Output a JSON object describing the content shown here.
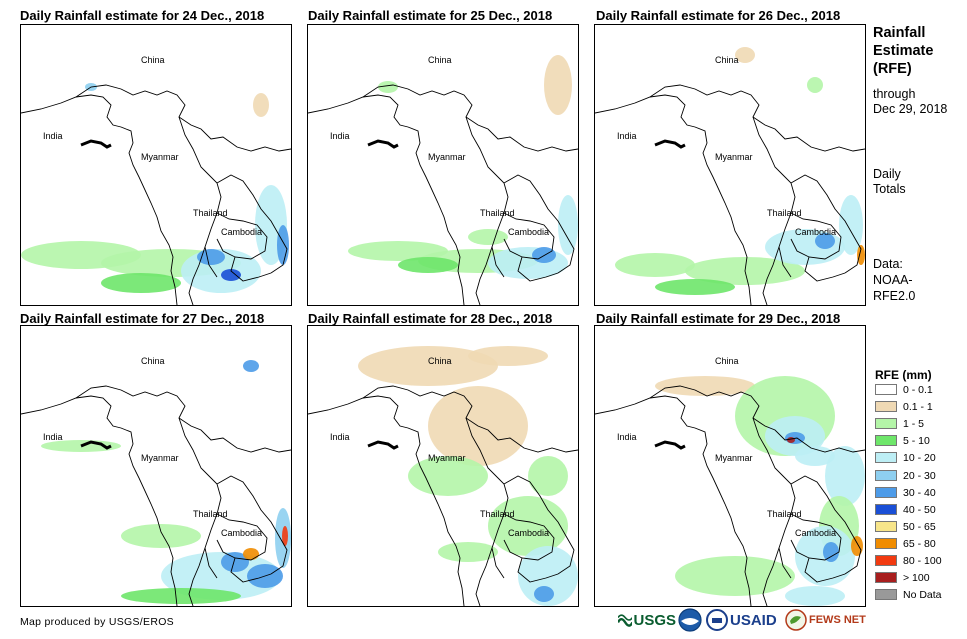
{
  "panels": [
    {
      "title": "Daily Rainfall estimate for 24 Dec., 2018"
    },
    {
      "title": "Daily Rainfall estimate for 25 Dec., 2018"
    },
    {
      "title": "Daily Rainfall estimate for 26 Dec., 2018"
    },
    {
      "title": "Daily Rainfall estimate for 27 Dec., 2018"
    },
    {
      "title": "Daily Rainfall estimate for 28 Dec., 2018"
    },
    {
      "title": "Daily Rainfall estimate for 29 Dec., 2018"
    }
  ],
  "places": {
    "china": "China",
    "india": "India",
    "myanmar": "Myanmar",
    "thailand": "Thailand",
    "cambodia": "Cambodia"
  },
  "side": {
    "title1": "Rainfall",
    "title2": "Estimate",
    "title3": "(RFE)",
    "through": "through",
    "date": "Dec 29, 2018",
    "daily": "Daily",
    "totals": "Totals",
    "data_label": "Data:",
    "source1": "NOAA-",
    "source2": "RFE2.0"
  },
  "legend": {
    "title": "RFE (mm)",
    "items": [
      {
        "label": "0 - 0.1",
        "color": "#ffffff"
      },
      {
        "label": "0.1 - 1",
        "color": "#efd9b4"
      },
      {
        "label": "1 - 5",
        "color": "#b4f5a8"
      },
      {
        "label": "5 - 10",
        "color": "#6ee66a"
      },
      {
        "label": "10 - 20",
        "color": "#bdeef5"
      },
      {
        "label": "20 - 30",
        "color": "#8ecff0"
      },
      {
        "label": "30 - 40",
        "color": "#4d9be8"
      },
      {
        "label": "40 - 50",
        "color": "#1a4fd6"
      },
      {
        "label": "50 - 65",
        "color": "#f7e58a"
      },
      {
        "label": "65 - 80",
        "color": "#f08c00"
      },
      {
        "label": "80 - 100",
        "color": "#f23a10"
      },
      {
        "label": "> 100",
        "color": "#a81e1e"
      },
      {
        "label": "No Data",
        "color": "#999999"
      }
    ]
  },
  "credit": "Map produced by USGS/EROS",
  "logos": {
    "usgs": "USGS",
    "usaid": "USAID",
    "fewsnet": "FEWS NET"
  }
}
